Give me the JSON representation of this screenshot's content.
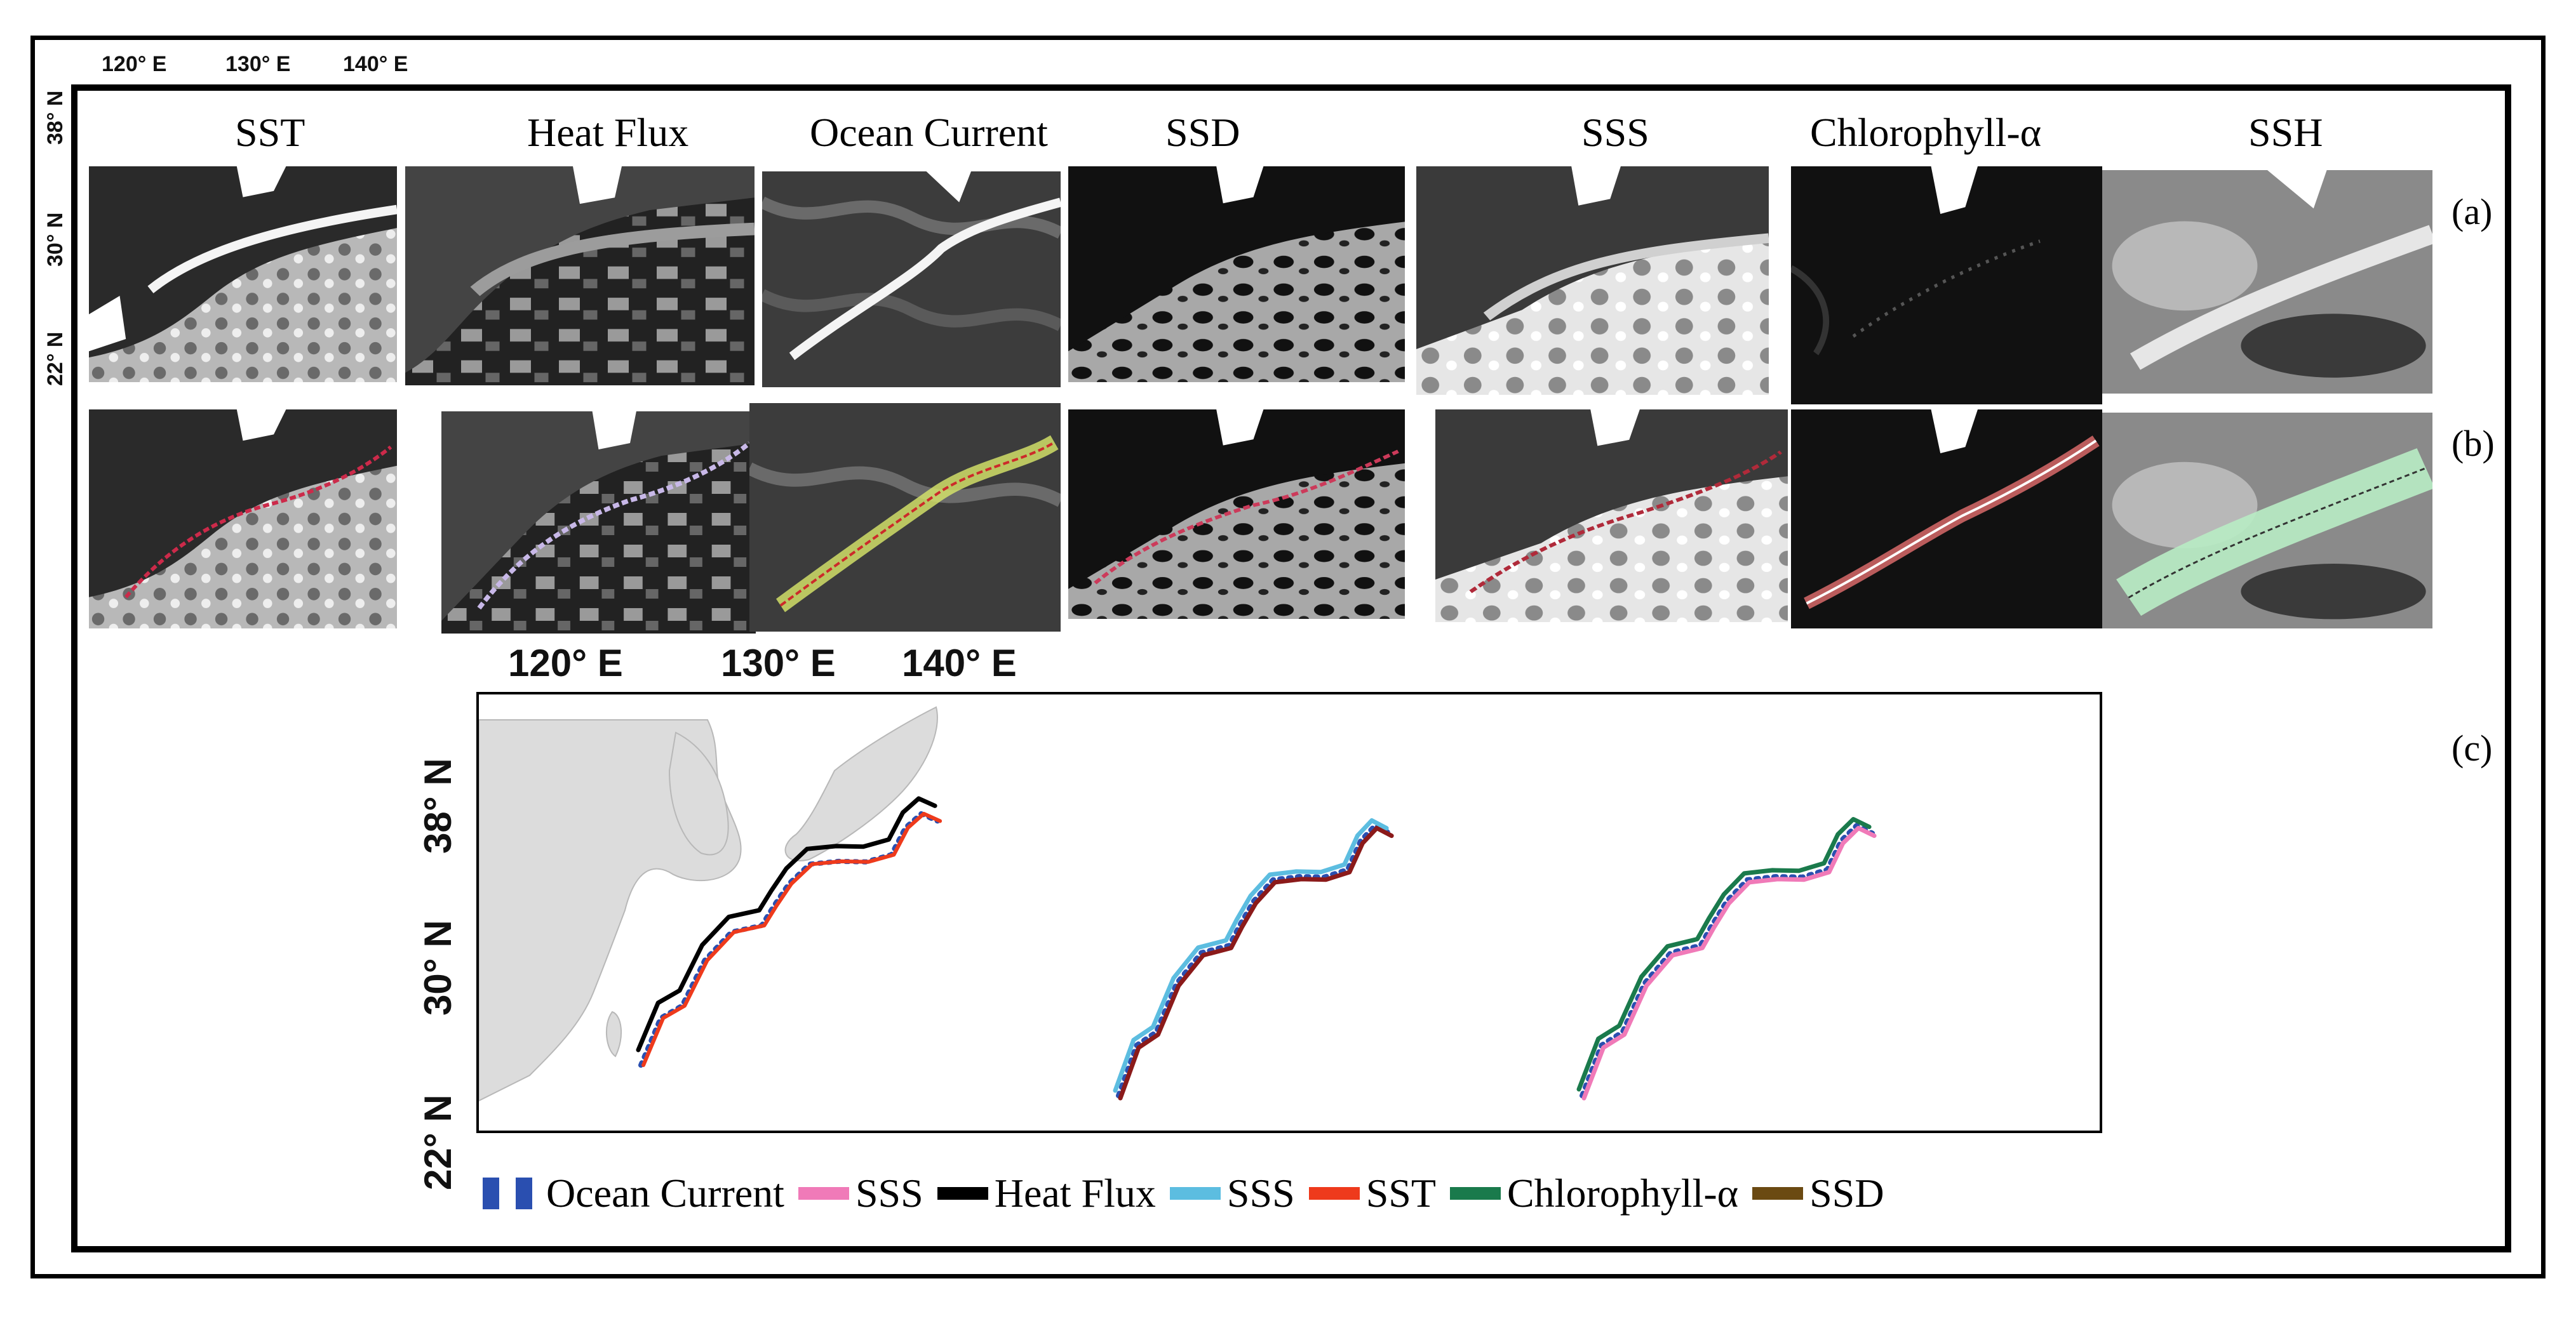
{
  "top_axis": {
    "lon_labels": [
      "120° E",
      "130° E",
      "140° E"
    ],
    "lat_labels": [
      "38° N",
      "30° N",
      "22° N"
    ]
  },
  "panel_titles": [
    "SST",
    "Heat Flux",
    "Ocean Current",
    "SSD",
    "SSS",
    "Chlorophyll-α",
    "SSH"
  ],
  "row_labels": [
    "(a)",
    "(b)",
    "(c)"
  ],
  "map_axis": {
    "lon_labels": [
      "120° E",
      "130° E",
      "140° E"
    ],
    "lat_labels": [
      "38° N",
      "30° N",
      "22° N"
    ]
  },
  "legend": [
    {
      "label": "Ocean Current",
      "color": "#2a4fb0",
      "style": "dashed"
    },
    {
      "label": "SSS",
      "color": "#f07ab8",
      "style": "solid"
    },
    {
      "label": "Heat Flux",
      "color": "#000000",
      "style": "solid"
    },
    {
      "label": "SSS",
      "color": "#5cbde0",
      "style": "solid"
    },
    {
      "label": "SST",
      "color": "#ee3a1c",
      "style": "solid"
    },
    {
      "label": "Chlorophyll-α",
      "color": "#1a7a4c",
      "style": "solid"
    },
    {
      "label": "SSD",
      "color": "#6b4a12",
      "style": "solid"
    }
  ],
  "colors": {
    "land": "#dcdcdc",
    "ocean_current": "#2a4fb0",
    "heat_flux": "#000000",
    "sst": "#ee3a1c",
    "sss_blue": "#5cbde0",
    "sss_pink": "#f07ab8",
    "chlorophyll": "#1a7a4c",
    "ssd": "#6b4a12",
    "red_dark": "#8b1a1a"
  }
}
